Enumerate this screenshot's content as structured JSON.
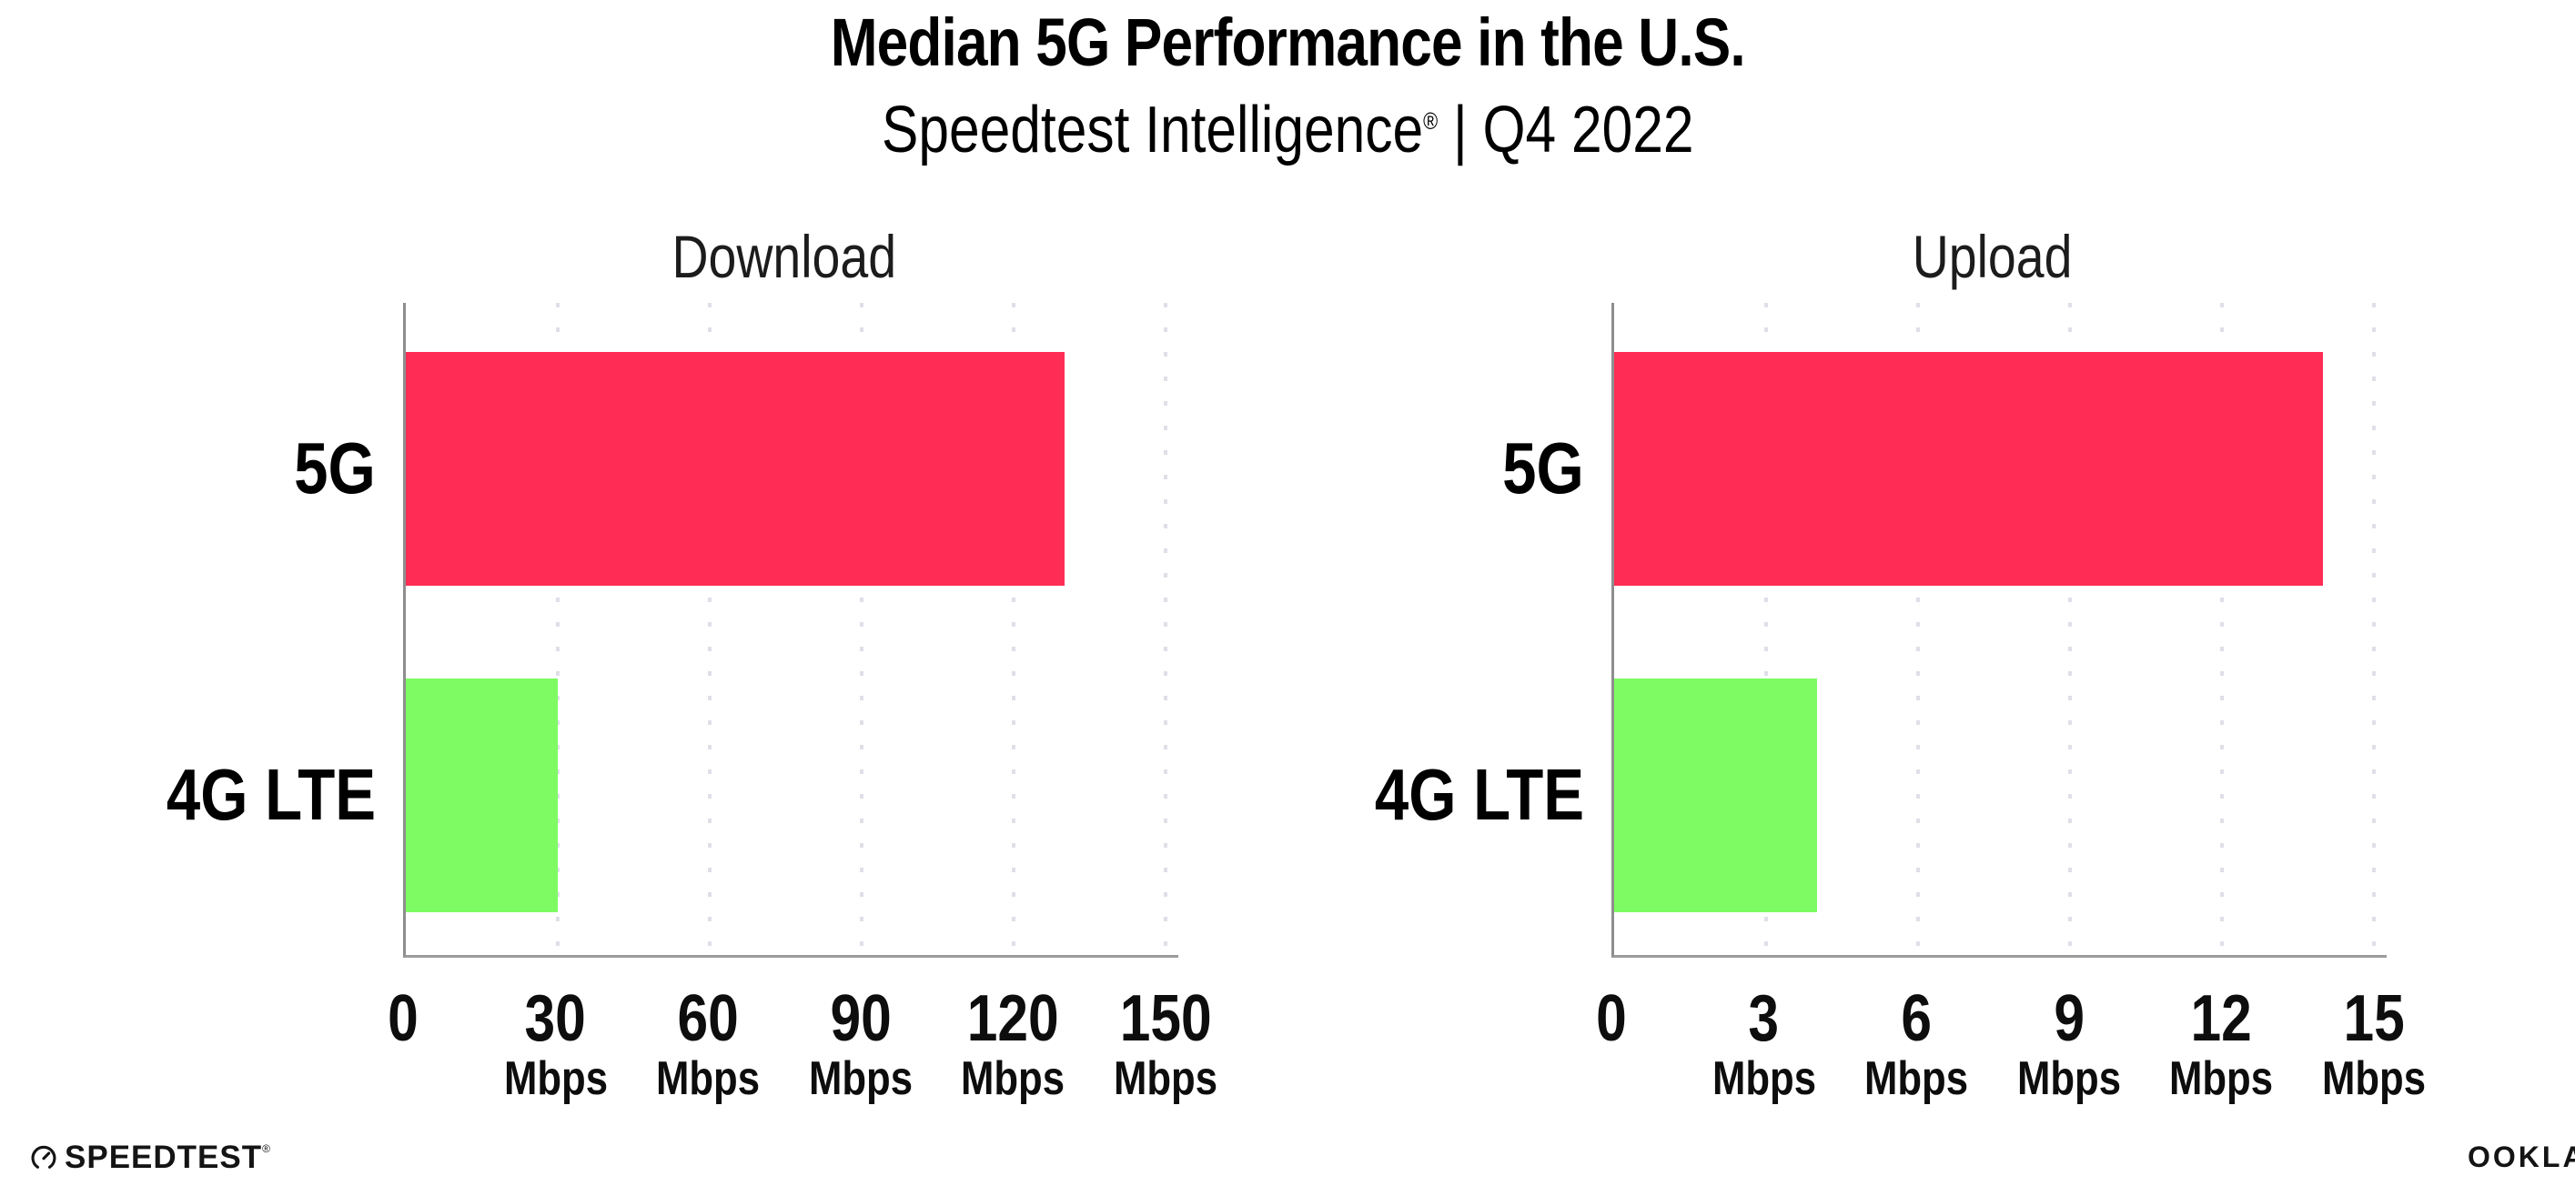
{
  "header": {
    "title": "Median 5G Performance in the U.S.",
    "subtitle_brand": "Speedtest Intelligence",
    "subtitle_reg": "®",
    "subtitle_rest": " | Q4 2022"
  },
  "colors": {
    "bar_5g": "#ff2d55",
    "bar_4g_lte": "#7efb62",
    "axis": "#9b9b9b",
    "gridline": "#dfdfe8"
  },
  "chart_data": [
    {
      "type": "bar",
      "orientation": "horizontal",
      "title": "Download",
      "categories": [
        "5G",
        "4G LTE"
      ],
      "values": [
        130,
        30
      ],
      "unit": "Mbps",
      "xlim": [
        0,
        150
      ],
      "xticks": [
        0,
        30,
        60,
        90,
        120,
        150
      ],
      "bar_colors": [
        "#ff2d55",
        "#7efb62"
      ],
      "grid": "vertical-dotted",
      "legend": "none"
    },
    {
      "type": "bar",
      "orientation": "horizontal",
      "title": "Upload",
      "categories": [
        "5G",
        "4G LTE"
      ],
      "values": [
        14,
        4
      ],
      "unit": "Mbps",
      "xlim": [
        0,
        15
      ],
      "xticks": [
        0,
        3,
        6,
        9,
        12,
        15
      ],
      "bar_colors": [
        "#ff2d55",
        "#7efb62"
      ],
      "grid": "vertical-dotted",
      "legend": "none"
    }
  ],
  "footer": {
    "speedtest_label": "SPEEDTEST",
    "speedtest_reg": "®",
    "ookla_label": "OOKLA",
    "ookla_reg": "®"
  }
}
